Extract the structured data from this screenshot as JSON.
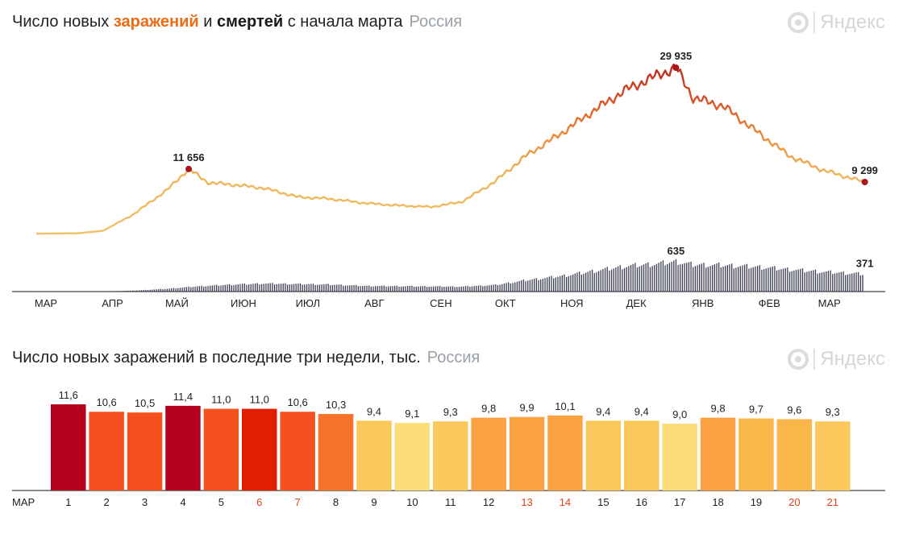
{
  "chart1": {
    "title_prefix": "Число новых ",
    "title_infections": "заражений",
    "title_and": " и ",
    "title_deaths": "смертей",
    "title_suffix": " с начала марта",
    "region": "Россия",
    "logo": "Яндекс",
    "chart_data": {
      "type": "line",
      "months": [
        "МАР",
        "АПР",
        "МАЙ",
        "ИЮН",
        "ИЮЛ",
        "АВГ",
        "СЕН",
        "ОКТ",
        "НОЯ",
        "ДЕК",
        "ЯНВ",
        "ФЕВ",
        "МАР"
      ],
      "series": [
        {
          "name": "заражений",
          "knots": [
            [
              "Mar 1",
              0
            ],
            [
              "Mar 20",
              50
            ],
            [
              "Apr 1",
              500
            ],
            [
              "Apr 15",
              3400
            ],
            [
              "May 1",
              7900
            ],
            [
              "May 11",
              11656
            ],
            [
              "May 20",
              9200
            ],
            [
              "Jun 1",
              8800
            ],
            [
              "Jun 15",
              8200
            ],
            [
              "Jul 1",
              6600
            ],
            [
              "Jul 15",
              6300
            ],
            [
              "Aug 1",
              5500
            ],
            [
              "Aug 15",
              5100
            ],
            [
              "Sep 1",
              4800
            ],
            [
              "Sep 15",
              5700
            ],
            [
              "Sep 25",
              8000
            ],
            [
              "Oct 1",
              9500
            ],
            [
              "Oct 15",
              14000
            ],
            [
              "Nov 1",
              18200
            ],
            [
              "Nov 15",
              22000
            ],
            [
              "Dec 1",
              26000
            ],
            [
              "Dec 15",
              28500
            ],
            [
              "Dec 24",
              29935
            ],
            [
              "Jan 1",
              24500
            ],
            [
              "Jan 15",
              23000
            ],
            [
              "Feb 1",
              18000
            ],
            [
              "Feb 15",
              14000
            ],
            [
              "Mar 1",
              11500
            ],
            [
              "Mar 10",
              10500
            ],
            [
              "Mar 21",
              9299
            ]
          ],
          "labels": [
            {
              "date": "May 11",
              "value": 11656,
              "text": "11 656"
            },
            {
              "date": "Dec 24",
              "value": 29935,
              "text": "29 935"
            },
            {
              "date": "Mar 21",
              "value": 9299,
              "text": "9 299"
            }
          ]
        },
        {
          "name": "смертей",
          "type": "bar",
          "knots": [
            [
              "Mar 1",
              0
            ],
            [
              "Apr 1",
              3
            ],
            [
              "Apr 15",
              20
            ],
            [
              "May 1",
              60
            ],
            [
              "May 15",
              110
            ],
            [
              "Jun 1",
              150
            ],
            [
              "Jun 15",
              170
            ],
            [
              "Jul 1",
              160
            ],
            [
              "Jul 15",
              150
            ],
            [
              "Aug 1",
              120
            ],
            [
              "Aug 15",
              115
            ],
            [
              "Sep 1",
              110
            ],
            [
              "Sep 15",
              105
            ],
            [
              "Oct 1",
              140
            ],
            [
              "Oct 15",
              240
            ],
            [
              "Nov 1",
              330
            ],
            [
              "Nov 15",
              430
            ],
            [
              "Dec 1",
              540
            ],
            [
              "Dec 15",
              590
            ],
            [
              "Dec 24",
              635
            ],
            [
              "Jan 1",
              570
            ],
            [
              "Jan 15",
              560
            ],
            [
              "Feb 1",
              520
            ],
            [
              "Feb 15",
              470
            ],
            [
              "Mar 1",
              420
            ],
            [
              "Mar 21",
              371
            ]
          ],
          "labels": [
            {
              "date": "Dec 24",
              "value": 635,
              "text": "635"
            },
            {
              "date": "Mar 21",
              "value": 371,
              "text": "371"
            }
          ]
        }
      ]
    }
  },
  "chart2": {
    "title": "Число новых заражений в последние три недели, тыс.",
    "region": "Россия",
    "logo": "Яндекс",
    "chart_data": {
      "type": "bar",
      "x_prefix": "МАР",
      "categories": [
        "1",
        "2",
        "3",
        "4",
        "5",
        "6",
        "7",
        "8",
        "9",
        "10",
        "11",
        "12",
        "13",
        "14",
        "15",
        "16",
        "17",
        "18",
        "19",
        "20",
        "21"
      ],
      "values": [
        11.6,
        10.6,
        10.5,
        11.4,
        11.0,
        11.0,
        10.6,
        10.3,
        9.4,
        9.1,
        9.3,
        9.8,
        9.9,
        10.1,
        9.4,
        9.4,
        9.0,
        9.8,
        9.7,
        9.6,
        9.3
      ],
      "labels": [
        "11,6",
        "10,6",
        "10,5",
        "11,4",
        "11,0",
        "11,0",
        "10,6",
        "10,3",
        "9,4",
        "9,1",
        "9,3",
        "9,8",
        "9,9",
        "10,1",
        "9,4",
        "9,4",
        "9,0",
        "9,8",
        "9,7",
        "9,6",
        "9,3"
      ],
      "colors": [
        "#b3001f",
        "#f5511e",
        "#f5511e",
        "#b3001f",
        "#f5511e",
        "#e01e00",
        "#f5511e",
        "#f7732b",
        "#fbc85c",
        "#fbdd7a",
        "#fbc85c",
        "#fba13f",
        "#fba13f",
        "#fba13f",
        "#fbc85c",
        "#fbc85c",
        "#fbdd7a",
        "#fba13f",
        "#fbb64a",
        "#fbb64a",
        "#fbc85c"
      ],
      "weekend_days": [
        "6",
        "7",
        "13",
        "14",
        "20",
        "21"
      ],
      "weekend_color": "#e0401a"
    }
  }
}
